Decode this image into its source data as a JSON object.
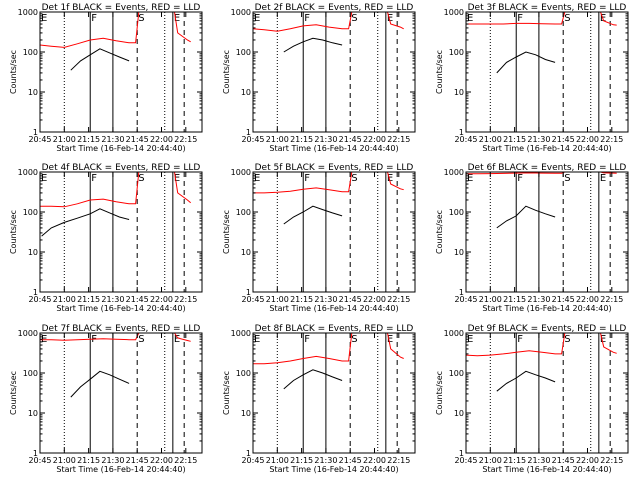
{
  "chart_data": {
    "type": "line",
    "xlabel": "Start Time (16-Feb-14 20:44:40)",
    "ylabel": "Counts/sec",
    "yscale": "log",
    "ylim": [
      1,
      1000
    ],
    "xlim_minutes_from_2045": [
      0,
      100
    ],
    "x_tick_labels": [
      "20:45",
      "21:00",
      "21:15",
      "21:30",
      "21:45",
      "22:00",
      "22:15"
    ],
    "y_tick_labels": [
      "1",
      "10",
      "100",
      "1000"
    ],
    "marker_lines": [
      {
        "label": "E",
        "t": "20:45",
        "style": "solid"
      },
      {
        "label": "",
        "t": "21:00",
        "style": "dotted"
      },
      {
        "label": "F",
        "t": "21:16",
        "style": "solid"
      },
      {
        "label": "",
        "t": "21:30",
        "style": "solid"
      },
      {
        "label": "S",
        "t": "21:45",
        "style": "dashed"
      },
      {
        "label": "",
        "t": "22:02",
        "style": "dotted"
      },
      {
        "label": "E",
        "t": "22:07",
        "style": "solid"
      },
      {
        "label": "",
        "t": "22:14",
        "style": "dashed"
      }
    ],
    "series_colors": {
      "events": "#000000",
      "lld": "#ff0000"
    },
    "panels": [
      {
        "title": "Det 1f BLACK = Events, RED = LLD",
        "events": {
          "x": [
            "21:04",
            "21:10",
            "21:16",
            "21:22",
            "21:28",
            "21:34",
            "21:40"
          ],
          "y": [
            35,
            60,
            85,
            120,
            95,
            75,
            60
          ]
        },
        "lld": {
          "x": [
            "20:45",
            "20:52",
            "21:00",
            "21:08",
            "21:16",
            "21:24",
            "21:32",
            "21:40",
            "21:44",
            "21:46",
            "22:08",
            "22:10",
            "22:16",
            "22:18"
          ],
          "y": [
            150,
            140,
            130,
            160,
            200,
            220,
            190,
            170,
            170,
            1000,
            1000,
            300,
            200,
            180
          ]
        }
      },
      {
        "title": "Det 2f BLACK = Events, RED = LLD",
        "events": {
          "x": [
            "21:04",
            "21:10",
            "21:16",
            "21:22",
            "21:28",
            "21:34",
            "21:40"
          ],
          "y": [
            100,
            140,
            180,
            220,
            200,
            170,
            150
          ]
        },
        "lld": {
          "x": [
            "20:45",
            "20:52",
            "21:00",
            "21:08",
            "21:16",
            "21:24",
            "21:32",
            "21:40",
            "21:44",
            "21:46",
            "22:08",
            "22:10",
            "22:16",
            "22:18"
          ],
          "y": [
            380,
            360,
            330,
            380,
            450,
            480,
            420,
            380,
            380,
            1000,
            1000,
            500,
            420,
            380
          ]
        }
      },
      {
        "title": "Det 3f BLACK = Events, RED = LLD",
        "events": {
          "x": [
            "21:04",
            "21:10",
            "21:16",
            "21:22",
            "21:28",
            "21:34",
            "21:40"
          ],
          "y": [
            30,
            55,
            75,
            100,
            85,
            65,
            55
          ]
        },
        "lld": {
          "x": [
            "20:45",
            "20:52",
            "21:00",
            "21:08",
            "21:16",
            "21:24",
            "21:32",
            "21:40",
            "21:44",
            "21:46",
            "22:08",
            "22:10",
            "22:16",
            "22:18"
          ],
          "y": [
            500,
            500,
            500,
            500,
            520,
            520,
            510,
            500,
            500,
            1000,
            1000,
            600,
            480,
            470
          ]
        }
      },
      {
        "title": "Det 4f BLACK = Events, RED = LLD",
        "events": {
          "x": [
            "20:46",
            "20:52",
            "21:00",
            "21:08",
            "21:16",
            "21:22",
            "21:28",
            "21:34",
            "21:40"
          ],
          "y": [
            25,
            40,
            55,
            70,
            90,
            120,
            95,
            75,
            65
          ]
        },
        "lld": {
          "x": [
            "20:45",
            "20:52",
            "21:00",
            "21:08",
            "21:16",
            "21:24",
            "21:32",
            "21:40",
            "21:44",
            "21:46",
            "22:08",
            "22:10",
            "22:16",
            "22:18"
          ],
          "y": [
            140,
            140,
            135,
            160,
            200,
            210,
            180,
            160,
            160,
            1000,
            1000,
            300,
            200,
            170
          ]
        }
      },
      {
        "title": "Det 5f BLACK = Events, RED = LLD",
        "events": {
          "x": [
            "21:04",
            "21:10",
            "21:16",
            "21:22",
            "21:28",
            "21:34",
            "21:40"
          ],
          "y": [
            50,
            75,
            100,
            140,
            115,
            95,
            80
          ]
        },
        "lld": {
          "x": [
            "20:45",
            "20:52",
            "21:00",
            "21:08",
            "21:16",
            "21:24",
            "21:32",
            "21:40",
            "21:44",
            "21:46",
            "22:08",
            "22:10",
            "22:16",
            "22:18"
          ],
          "y": [
            300,
            300,
            310,
            330,
            370,
            400,
            360,
            320,
            320,
            1000,
            1000,
            500,
            380,
            360
          ]
        }
      },
      {
        "title": "Det 6f BLACK = Events, RED = LLD",
        "events": {
          "x": [
            "21:04",
            "21:10",
            "21:16",
            "21:22",
            "21:28",
            "21:34",
            "21:40"
          ],
          "y": [
            40,
            60,
            80,
            140,
            110,
            90,
            75
          ]
        },
        "lld": {
          "x": [
            "20:45",
            "20:52",
            "21:00",
            "21:08",
            "21:16",
            "21:24",
            "21:32",
            "21:40",
            "21:44",
            "21:46",
            "22:08",
            "22:10",
            "22:16",
            "22:18"
          ],
          "y": [
            900,
            900,
            910,
            920,
            940,
            950,
            940,
            930,
            930,
            1000,
            1000,
            950,
            940,
            930
          ]
        }
      },
      {
        "title": "Det 7f BLACK = Events, RED = LLD",
        "events": {
          "x": [
            "21:04",
            "21:10",
            "21:16",
            "21:22",
            "21:28",
            "21:34",
            "21:40"
          ],
          "y": [
            25,
            45,
            70,
            110,
            90,
            70,
            55
          ]
        },
        "lld": {
          "x": [
            "20:45",
            "20:52",
            "21:00",
            "21:08",
            "21:16",
            "21:24",
            "21:32",
            "21:40",
            "21:44",
            "21:46",
            "22:08",
            "22:10",
            "22:16",
            "22:18"
          ],
          "y": [
            680,
            680,
            660,
            680,
            700,
            720,
            700,
            680,
            680,
            1000,
            1000,
            750,
            650,
            620
          ]
        }
      },
      {
        "title": "Det 8f BLACK = Events, RED = LLD",
        "events": {
          "x": [
            "21:04",
            "21:10",
            "21:16",
            "21:22",
            "21:28",
            "21:34",
            "21:40"
          ],
          "y": [
            40,
            65,
            90,
            120,
            100,
            80,
            65
          ]
        },
        "lld": {
          "x": [
            "20:45",
            "20:52",
            "21:00",
            "21:08",
            "21:16",
            "21:24",
            "21:32",
            "21:40",
            "21:44",
            "21:46",
            "22:08",
            "22:10",
            "22:16",
            "22:18"
          ],
          "y": [
            170,
            170,
            180,
            200,
            230,
            260,
            230,
            200,
            200,
            1000,
            1000,
            400,
            250,
            230
          ]
        }
      },
      {
        "title": "Det 9f BLACK = Events, RED = LLD",
        "events": {
          "x": [
            "21:04",
            "21:10",
            "21:16",
            "21:22",
            "21:28",
            "21:34",
            "21:40"
          ],
          "y": [
            35,
            55,
            75,
            110,
            90,
            75,
            60
          ]
        },
        "lld": {
          "x": [
            "20:45",
            "20:52",
            "21:00",
            "21:08",
            "21:16",
            "21:24",
            "21:32",
            "21:40",
            "21:44",
            "21:46",
            "22:08",
            "22:10",
            "22:16",
            "22:18"
          ],
          "y": [
            280,
            270,
            280,
            300,
            330,
            360,
            330,
            300,
            300,
            1000,
            1000,
            450,
            330,
            310
          ]
        }
      }
    ]
  }
}
